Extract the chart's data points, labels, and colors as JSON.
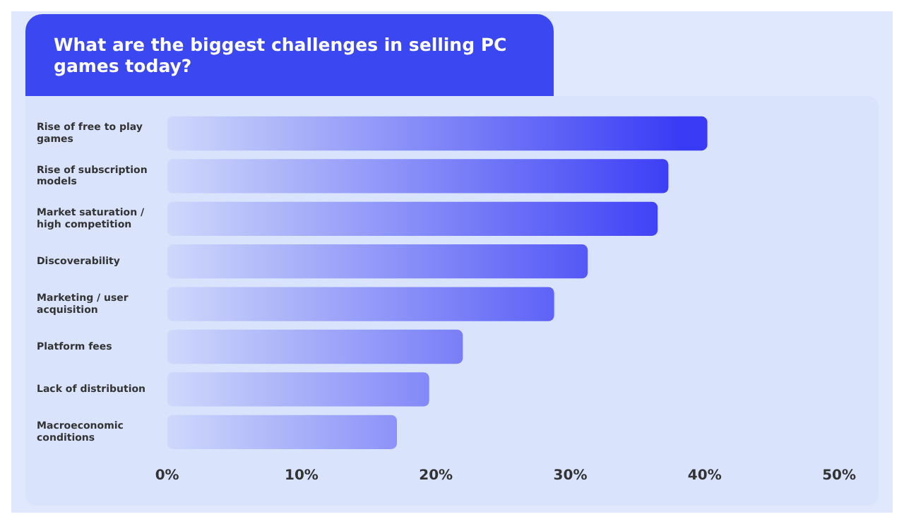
{
  "chart_data": {
    "type": "bar",
    "orientation": "horizontal",
    "title": "What are the biggest challenges in selling PC games today?",
    "categories": [
      "Rise of free to play games",
      "Rise of subscription models",
      "Market saturation / high competition",
      "Discoverability",
      "Marketing / user acquisition",
      "Platform fees",
      "Lack of distribution",
      "Macroeconomic conditions"
    ],
    "values": [
      40.2,
      37.3,
      36.5,
      31.3,
      28.8,
      22.0,
      19.5,
      17.1
    ],
    "color": "#3a3cf5",
    "xlim": [
      0,
      50
    ],
    "xticks": [
      {
        "value": 0,
        "label": "0%"
      },
      {
        "value": 10,
        "label": "10%"
      },
      {
        "value": 20,
        "label": "20%"
      },
      {
        "value": 30,
        "label": "30%"
      },
      {
        "value": 40,
        "label": "40%"
      },
      {
        "value": 50,
        "label": "50%"
      }
    ],
    "grid": false,
    "legend": false
  }
}
